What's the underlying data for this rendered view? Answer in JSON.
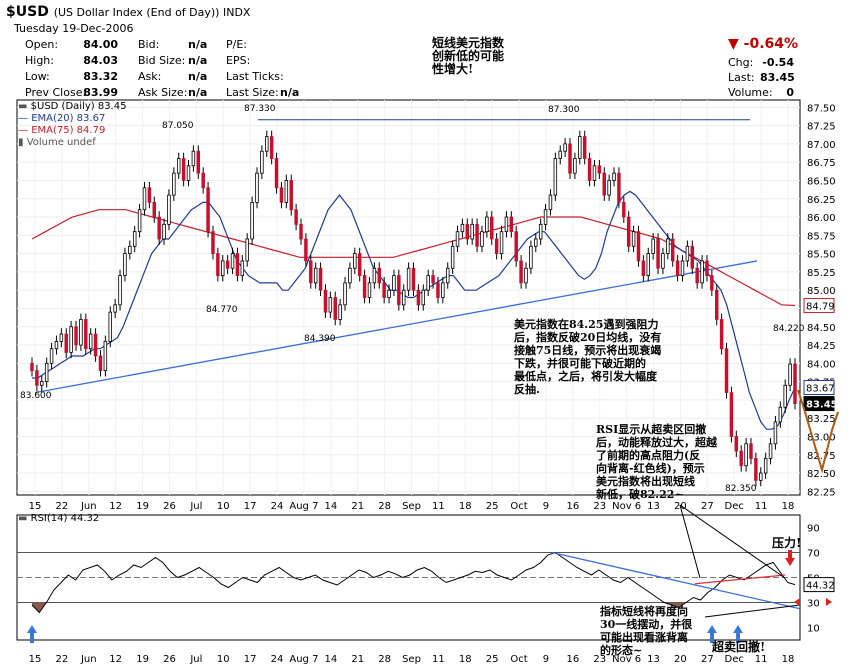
{
  "header": {
    "symbol": "$USD",
    "name": "(US Dollar Index (End of Day)) INDX",
    "date": "Tuesday  19-Dec-2006",
    "open_label": "Open:",
    "open": "84.00",
    "high_label": "High:",
    "high": "84.03",
    "low_label": "Low:",
    "low": "83.32",
    "prev_label": "Prev Close:",
    "prev": "83.99",
    "bid_label": "Bid:",
    "bid": "n/a",
    "bidsize_label": "Bid Size:",
    "bidsize": "n/a",
    "ask_label": "Ask:",
    "ask": "n/a",
    "asksize_label": "Ask Size:",
    "asksize": "n/a",
    "pe_label": "P/E:",
    "eps_label": "EPS:",
    "lastticks_label": "Last Ticks:",
    "lastsize_label": "Last Size:",
    "lastsize": "n/a",
    "chgpct": "▼ -0.64%",
    "chg_label": "Chg:",
    "chg": "-0.54",
    "last_label": "Last:",
    "last": "83.45",
    "volume_label": "Volume:",
    "volume": "0"
  },
  "annotations": {
    "top_note": [
      "短线美元指数",
      "创新低的可能",
      "性增大!"
    ],
    "mid_note": [
      "美元指数在84.25遇到强阻力",
      "后，指数反破20日均线，没有",
      "接触75日线，预示将出现衰竭",
      "下跌，并很可能下破近期的",
      "最低点，之后，将引发大幅度",
      "反抽."
    ],
    "rsi_note": [
      "RSI显示从超卖区回撤",
      "后，动能释放过大，超越",
      "了前期的高点阻力(反",
      "向背离-红色线)，预示",
      "美元指数将出现短线",
      "新低，破82.22~"
    ],
    "pressure": "压力!",
    "rsi_bottom_note": [
      "指标短线将再度向",
      "30一线摆动，并很",
      "可能出现看涨背离",
      "的形态~"
    ],
    "oversold_rebound": "超卖回撤!"
  },
  "chart_data": {
    "type": "candlestick",
    "legend": {
      "price": "$USD (Daily) 83.45",
      "ema20": "EMA(20) 83.67",
      "ema75": "EMA(75) 84.79",
      "volume": "Volume undef"
    },
    "y_ticks": [
      "87.50",
      "87.25",
      "87.00",
      "86.75",
      "86.50",
      "86.25",
      "86.00",
      "85.75",
      "85.50",
      "85.25",
      "85.00",
      "84.75",
      "84.50",
      "84.25",
      "84.00",
      "83.75",
      "83.50",
      "83.25",
      "83.00",
      "82.75",
      "82.50",
      "82.25"
    ],
    "ylim": [
      82.2,
      87.6
    ],
    "x_labels": [
      "15",
      "22",
      "Jun",
      "12",
      "19",
      "26",
      "Jul",
      "10",
      "17",
      "24",
      "Aug 7",
      "14",
      "21",
      "28",
      "Sep",
      "11",
      "18",
      "25",
      "Oct",
      "9",
      "16",
      "23",
      "Nov 6",
      "13",
      "20",
      "27",
      "Dec",
      "11",
      "18"
    ],
    "peak_labels": [
      "87.050",
      "87.330",
      "87.300",
      "84.770",
      "84.390",
      "83.600",
      "84.220",
      "82.350"
    ],
    "axis_tags": [
      "84.79",
      "83.67",
      "83.45"
    ],
    "close": [
      83.9,
      83.7,
      83.75,
      84.0,
      84.2,
      84.3,
      84.4,
      84.15,
      84.5,
      84.25,
      84.6,
      84.2,
      84.4,
      84.1,
      83.9,
      84.3,
      84.7,
      84.8,
      85.2,
      85.5,
      85.6,
      85.8,
      86.1,
      86.4,
      86.2,
      86.0,
      85.7,
      85.9,
      86.3,
      86.6,
      86.8,
      86.5,
      86.7,
      86.9,
      86.6,
      86.4,
      85.8,
      85.5,
      85.2,
      85.4,
      85.3,
      85.5,
      85.2,
      85.4,
      85.7,
      86.2,
      86.6,
      86.9,
      87.1,
      86.8,
      86.4,
      86.2,
      86.5,
      86.1,
      85.9,
      85.7,
      85.4,
      85.1,
      85.3,
      85.0,
      84.7,
      84.9,
      84.6,
      84.8,
      85.1,
      85.3,
      85.5,
      85.2,
      84.9,
      85.1,
      85.3,
      85.1,
      84.9,
      85.0,
      85.2,
      84.8,
      85.0,
      85.3,
      85.0,
      84.8,
      85.0,
      85.2,
      85.1,
      84.9,
      85.1,
      85.3,
      85.6,
      85.8,
      85.9,
      85.7,
      85.9,
      85.6,
      85.8,
      86.0,
      85.7,
      85.5,
      85.8,
      86.0,
      85.8,
      85.4,
      85.1,
      85.3,
      85.6,
      85.7,
      85.9,
      86.1,
      86.3,
      86.8,
      86.9,
      87.0,
      86.6,
      86.8,
      87.1,
      86.8,
      86.5,
      86.7,
      86.6,
      86.3,
      86.5,
      86.6,
      86.2,
      86.0,
      85.6,
      85.8,
      85.4,
      85.2,
      85.5,
      85.7,
      85.3,
      85.5,
      85.7,
      85.4,
      85.2,
      85.4,
      85.6,
      85.3,
      85.1,
      85.4,
      85.2,
      85.0,
      84.6,
      84.2,
      83.6,
      83.0,
      82.8,
      82.6,
      82.9,
      82.7,
      82.4,
      82.5,
      82.7,
      82.9,
      83.2,
      83.4,
      83.7,
      83.99,
      83.45
    ],
    "ema20": [
      83.8,
      83.8,
      83.85,
      83.9,
      83.95,
      84.0,
      84.05,
      84.1,
      84.1,
      84.1,
      84.15,
      84.2,
      84.2,
      84.25,
      84.3,
      84.35,
      84.5,
      84.7,
      84.9,
      85.1,
      85.3,
      85.5,
      85.6,
      85.7,
      85.7,
      85.8,
      85.9,
      86.0,
      86.1,
      86.15,
      86.2,
      86.2,
      86.1,
      86.0,
      85.8,
      85.6,
      85.4,
      85.3,
      85.2,
      85.15,
      85.1,
      85.1,
      85.1,
      85.1,
      85.0,
      85.0,
      85.1,
      85.2,
      85.3,
      85.5,
      85.7,
      85.9,
      86.1,
      86.2,
      86.3,
      86.2,
      86.1,
      85.9,
      85.7,
      85.5,
      85.3,
      85.2,
      85.1,
      85.0,
      85.0,
      84.95,
      84.9,
      84.9,
      84.95,
      85.0,
      85.05,
      85.1,
      85.15,
      85.2,
      85.2,
      85.1,
      85.0,
      85.0,
      85.0,
      85.05,
      85.1,
      85.15,
      85.2,
      85.3,
      85.4,
      85.5,
      85.6,
      85.7,
      85.75,
      85.8,
      85.8,
      85.7,
      85.6,
      85.5,
      85.4,
      85.3,
      85.2,
      85.15,
      85.2,
      85.3,
      85.5,
      85.8,
      86.0,
      86.2,
      86.3,
      86.35,
      86.3,
      86.2,
      86.1,
      86.0,
      85.9,
      85.8,
      85.7,
      85.6,
      85.55,
      85.5,
      85.45,
      85.4,
      85.3,
      85.2,
      85.1,
      85.0,
      84.8,
      84.5,
      84.2,
      83.9,
      83.6,
      83.4,
      83.2,
      83.1,
      83.1,
      83.15,
      83.3,
      83.5,
      83.67
    ],
    "ema75": [
      85.7,
      85.8,
      85.9,
      86.0,
      86.05,
      86.1,
      86.1,
      86.1,
      86.05,
      86.0,
      85.95,
      85.9,
      85.85,
      85.8,
      85.75,
      85.7,
      85.65,
      85.6,
      85.55,
      85.5,
      85.45,
      85.45,
      85.45,
      85.45,
      85.45,
      85.45,
      85.45,
      85.45,
      85.5,
      85.55,
      85.6,
      85.65,
      85.7,
      85.75,
      85.8,
      85.85,
      85.9,
      85.95,
      86.0,
      86.0,
      86.0,
      86.0,
      85.95,
      85.9,
      85.85,
      85.8,
      85.75,
      85.7,
      85.6,
      85.5,
      85.4,
      85.3,
      85.2,
      85.1,
      85.0,
      84.9,
      84.8,
      84.79
    ],
    "support_line": {
      "from": [
        83.6,
        "May 15"
      ],
      "to": [
        85.4,
        "Dec 20"
      ]
    },
    "resistance_line": 87.33,
    "rsi": {
      "label": "RSI(14) 44.32",
      "levels": [
        "90",
        "70",
        "50",
        "30",
        "10"
      ],
      "tag": "44.32",
      "values": [
        28,
        22,
        30,
        40,
        46,
        52,
        48,
        56,
        58,
        60,
        55,
        48,
        52,
        55,
        60,
        58,
        62,
        66,
        62,
        55,
        50,
        52,
        55,
        58,
        54,
        50,
        45,
        42,
        46,
        50,
        48,
        46,
        52,
        55,
        58,
        54,
        50,
        48,
        50,
        52,
        48,
        46,
        44,
        48,
        52,
        56,
        54,
        50,
        52,
        55,
        53,
        50,
        52,
        56,
        58,
        55,
        50,
        46,
        48,
        50,
        52,
        55,
        54,
        56,
        52,
        50,
        48,
        52,
        56,
        58,
        62,
        68,
        70,
        66,
        62,
        58,
        55,
        52,
        56,
        52,
        48,
        46,
        50,
        46,
        42,
        38,
        34,
        30,
        28,
        26,
        30,
        34,
        32,
        38,
        42,
        48,
        52,
        50,
        48,
        52,
        56,
        60,
        62,
        54,
        46,
        44.32
      ]
    }
  }
}
